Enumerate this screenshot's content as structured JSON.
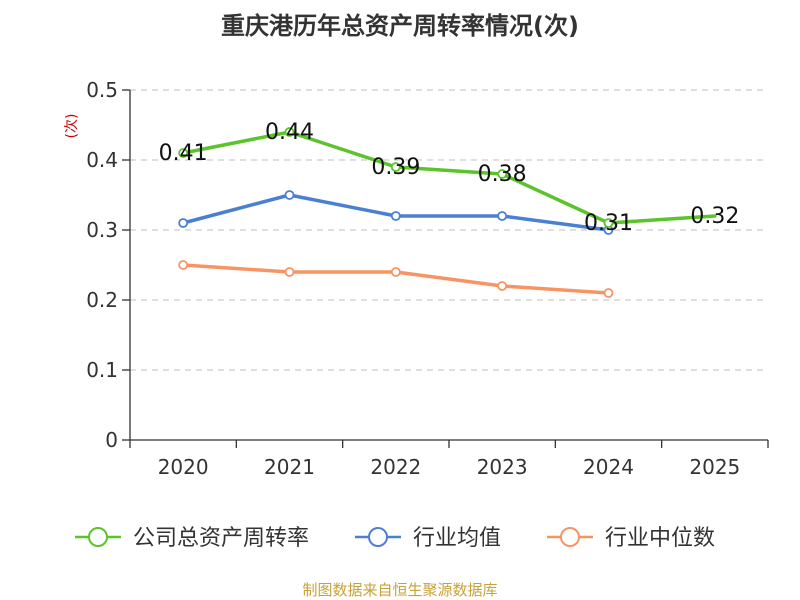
{
  "chart_data": {
    "type": "line",
    "title": "重庆港历年总资产周转率情况(次)",
    "ylabel": "(次)",
    "xlabel": "",
    "categories": [
      "2020",
      "2021",
      "2022",
      "2023",
      "2024",
      "2025"
    ],
    "ylim": [
      0,
      0.5
    ],
    "yticks": [
      "0",
      "0.1",
      "0.2",
      "0.3",
      "0.4",
      "0.5"
    ],
    "grid": true,
    "legend_position": "bottom",
    "series": [
      {
        "name": "公司总资产周转率",
        "color": "#5bc42a",
        "values": [
          0.41,
          0.44,
          0.39,
          0.38,
          0.31,
          0.32
        ],
        "labels": [
          "0.41",
          "0.44",
          "0.39",
          "0.38",
          "0.31",
          "0.32"
        ],
        "markers": [
          true,
          true,
          true,
          true,
          true,
          false
        ]
      },
      {
        "name": "行业均值",
        "color": "#4a7fd4",
        "values": [
          0.31,
          0.35,
          0.32,
          0.32,
          0.3,
          null
        ]
      },
      {
        "name": "行业中位数",
        "color": "#f89464",
        "values": [
          0.25,
          0.24,
          0.24,
          0.22,
          0.21,
          null
        ]
      }
    ],
    "source": "制图数据来自恒生聚源数据库"
  }
}
